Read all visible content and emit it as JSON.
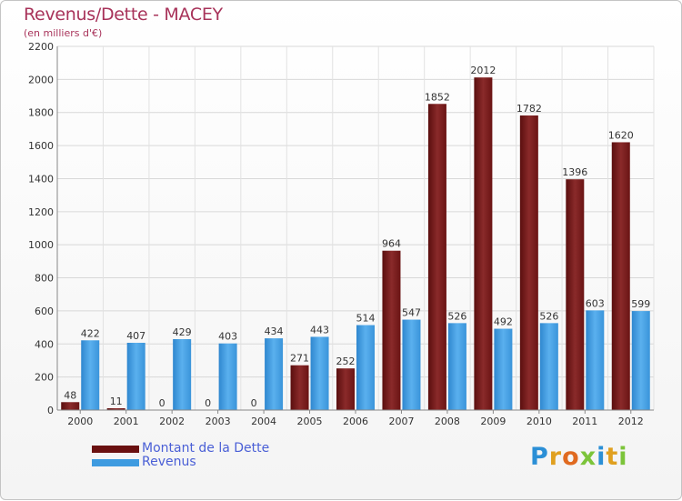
{
  "chart_data": {
    "type": "bar",
    "title": "Revenus/Dette - MACEY",
    "subtitle": "(en milliers d'€)",
    "categories": [
      "2000",
      "2001",
      "2002",
      "2003",
      "2004",
      "2005",
      "2006",
      "2007",
      "2008",
      "2009",
      "2010",
      "2011",
      "2012"
    ],
    "series": [
      {
        "name": "Montant de la Dette",
        "color": "#7a1c1c",
        "values": [
          48,
          11,
          0,
          0,
          0,
          271,
          252,
          964,
          1852,
          2012,
          1782,
          1396,
          1620
        ]
      },
      {
        "name": "Revenus",
        "color": "#3e9be0",
        "values": [
          422,
          407,
          429,
          403,
          434,
          443,
          514,
          547,
          526,
          492,
          526,
          603,
          599
        ]
      }
    ],
    "yticks": [
      0,
      200,
      400,
      600,
      800,
      1000,
      1200,
      1400,
      1600,
      1800,
      2000,
      2200
    ],
    "ylim": [
      0,
      2200
    ],
    "grid": true,
    "legend_position": "bottom-left"
  },
  "logo": {
    "text": "Proxiti"
  }
}
